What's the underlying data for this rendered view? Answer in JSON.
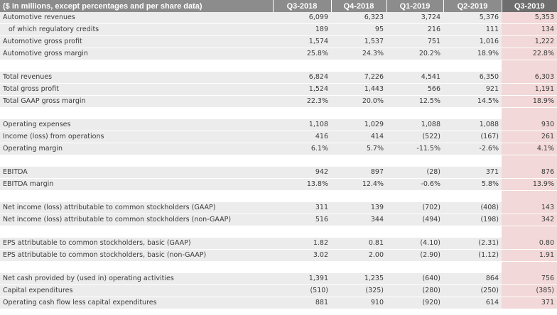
{
  "header": {
    "label": "($ in millions,  except percentages and per share data)",
    "columns": [
      "Q3-2018",
      "Q4-2018",
      "Q1-2019",
      "Q2-2019",
      "Q3-2019"
    ]
  },
  "rows": [
    {
      "label": "Automotive revenues",
      "values": [
        "6,099",
        "6,323",
        "3,724",
        "5,376",
        "5,353"
      ]
    },
    {
      "label": "of which regulatory credits",
      "values": [
        "189",
        "95",
        "216",
        "111",
        "134"
      ]
    },
    {
      "label": "Automotive gross profit",
      "values": [
        "1,574",
        "1,537",
        "751",
        "1,016",
        "1,222"
      ]
    },
    {
      "label": "Automotive gross margin",
      "values": [
        "25.8%",
        "24.3%",
        "20.2%",
        "18.9%",
        "22.8%"
      ]
    },
    {
      "label": "Total revenues",
      "values": [
        "6,824",
        "7,226",
        "4,541",
        "6,350",
        "6,303"
      ]
    },
    {
      "label": "Total gross profit",
      "values": [
        "1,524",
        "1,443",
        "566",
        "921",
        "1,191"
      ]
    },
    {
      "label": "Total GAAP gross margin",
      "values": [
        "22.3%",
        "20.0%",
        "12.5%",
        "14.5%",
        "18.9%"
      ]
    },
    {
      "label": "Operating expenses",
      "values": [
        "1,108",
        "1,029",
        "1,088",
        "1,088",
        "930"
      ]
    },
    {
      "label": "Income (loss) from operations",
      "values": [
        "416",
        "414",
        "(522)",
        "(167)",
        "261"
      ]
    },
    {
      "label": "Operating margin",
      "values": [
        "6.1%",
        "5.7%",
        "-11.5%",
        "-2.6%",
        "4.1%"
      ]
    },
    {
      "label": "EBITDA",
      "values": [
        "942",
        "897",
        "(28)",
        "371",
        "876"
      ]
    },
    {
      "label": "EBITDA margin",
      "values": [
        "13.8%",
        "12.4%",
        "-0.6%",
        "5.8%",
        "13.9%"
      ]
    },
    {
      "label": "Net income (loss) attributable to common stockholders (GAAP)",
      "values": [
        "311",
        "139",
        "(702)",
        "(408)",
        "143"
      ]
    },
    {
      "label": "Net income (loss) attributable to common stockholders (non-GAAP)",
      "values": [
        "516",
        "344",
        "(494)",
        "(198)",
        "342"
      ]
    },
    {
      "label": "EPS attributable to common stockholders, basic (GAAP)",
      "values": [
        "1.82",
        "0.81",
        "(4.10)",
        "(2.31)",
        "0.80"
      ]
    },
    {
      "label": "EPS attributable to common stockholders, basic (non-GAAP)",
      "values": [
        "3.02",
        "2.00",
        "(2.90)",
        "(1.12)",
        "1.91"
      ]
    },
    {
      "label": "Net cash provided by (used in) operating activities",
      "values": [
        "1,391",
        "1,235",
        "(640)",
        "864",
        "756"
      ]
    },
    {
      "label": "Capital expenditures",
      "values": [
        "(510)",
        "(325)",
        "(280)",
        "(250)",
        "(385)"
      ]
    },
    {
      "label": "Operating cash flow less capital expenditures",
      "values": [
        "881",
        "910",
        "(920)",
        "614",
        "371"
      ]
    }
  ],
  "colors": {
    "header_bg": "#8c8c8c",
    "header_current_bg": "#6e6e6e",
    "row_bg": "#ececec",
    "current_quarter_highlight": "#f2d8d8"
  }
}
